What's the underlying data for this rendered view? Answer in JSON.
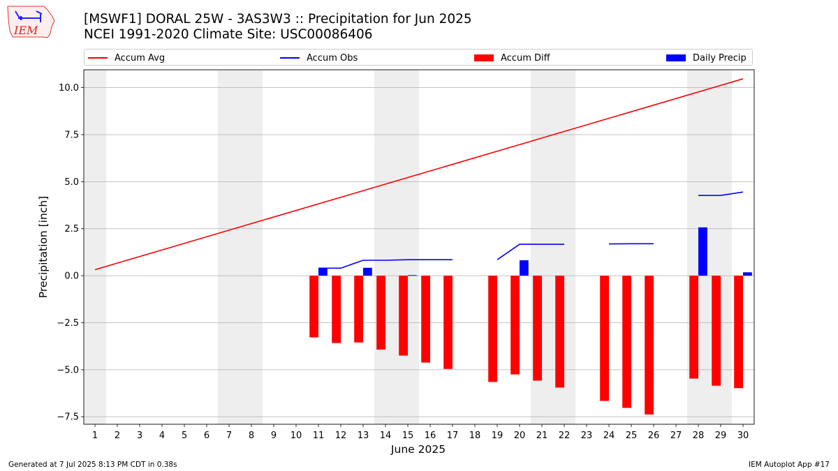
{
  "header": {
    "logo_text": "IEM",
    "title_line1": "[MSWF1] DORAL 25W - 3AS3W3 :: Precipitation for Jun 2025",
    "title_line2": "NCEI 1991-2020 Climate Site: USC00086406"
  },
  "footer": {
    "left": "Generated at 7 Jul 2025 8:13 PM CDT in 0.38s",
    "right": "IEM Autoplot App #17"
  },
  "colors": {
    "accum_avg": "#ff0000",
    "accum_obs": "#0000ff",
    "accum_diff": "#ff0000",
    "daily_precip": "#0000ff",
    "weekend_shade": "#eeeeee",
    "grid": "#b0b0b0"
  },
  "chart_data": {
    "type": "bar",
    "xlabel": "June 2025",
    "ylabel": "Precipitation [inch]",
    "xlim": [
      0.5,
      30.5
    ],
    "ylim": [
      -7.9,
      10.95
    ],
    "x_ticks": [
      1,
      2,
      3,
      4,
      5,
      6,
      7,
      8,
      9,
      10,
      11,
      12,
      13,
      14,
      15,
      16,
      17,
      18,
      19,
      20,
      21,
      22,
      23,
      24,
      25,
      26,
      27,
      28,
      29,
      30
    ],
    "y_ticks": [
      -7.5,
      -5.0,
      -2.5,
      0.0,
      2.5,
      5.0,
      7.5,
      10.0
    ],
    "y_tick_labels": [
      "−7.5",
      "−5.0",
      "−2.5",
      "0.0",
      "2.5",
      "5.0",
      "7.5",
      "10.0"
    ],
    "grid": "y",
    "legend_position": "top",
    "weekend_spans": [
      [
        0.5,
        1.5
      ],
      [
        6.5,
        8.5
      ],
      [
        13.5,
        15.5
      ],
      [
        20.5,
        22.5
      ],
      [
        27.5,
        29.5
      ]
    ],
    "series": [
      {
        "name": "Accum Avg",
        "kind": "line",
        "x": [
          1,
          30
        ],
        "values": [
          0.32,
          10.47
        ]
      },
      {
        "name": "Accum Obs",
        "kind": "line",
        "segments": [
          {
            "x": [
              11,
              12,
              13,
              14,
              15,
              16,
              17
            ],
            "values": [
              0.4,
              0.4,
              0.82,
              0.82,
              0.85,
              0.85,
              0.85
            ]
          },
          {
            "x": [
              19,
              20,
              21,
              22
            ],
            "values": [
              0.85,
              1.67,
              1.67,
              1.67
            ]
          },
          {
            "x": [
              24,
              25,
              26
            ],
            "values": [
              1.69,
              1.7,
              1.7
            ]
          },
          {
            "x": [
              28,
              29,
              30
            ],
            "values": [
              4.27,
              4.27,
              4.45
            ]
          }
        ]
      },
      {
        "name": "Accum Diff",
        "kind": "bar",
        "x": [
          11,
          12,
          13,
          14,
          15,
          16,
          17,
          19,
          20,
          21,
          22,
          24,
          25,
          26,
          28,
          29,
          30
        ],
        "values": [
          -3.28,
          -3.58,
          -3.55,
          -3.93,
          -4.25,
          -4.62,
          -4.96,
          -5.65,
          -5.25,
          -5.58,
          -5.95,
          -6.66,
          -7.03,
          -7.38,
          -5.47,
          -5.85,
          -5.98
        ]
      },
      {
        "name": "Daily Precip",
        "kind": "bar",
        "x": [
          11,
          13,
          15,
          20,
          28,
          30
        ],
        "values": [
          0.4,
          0.42,
          0.03,
          0.82,
          2.57,
          0.18
        ]
      }
    ]
  }
}
